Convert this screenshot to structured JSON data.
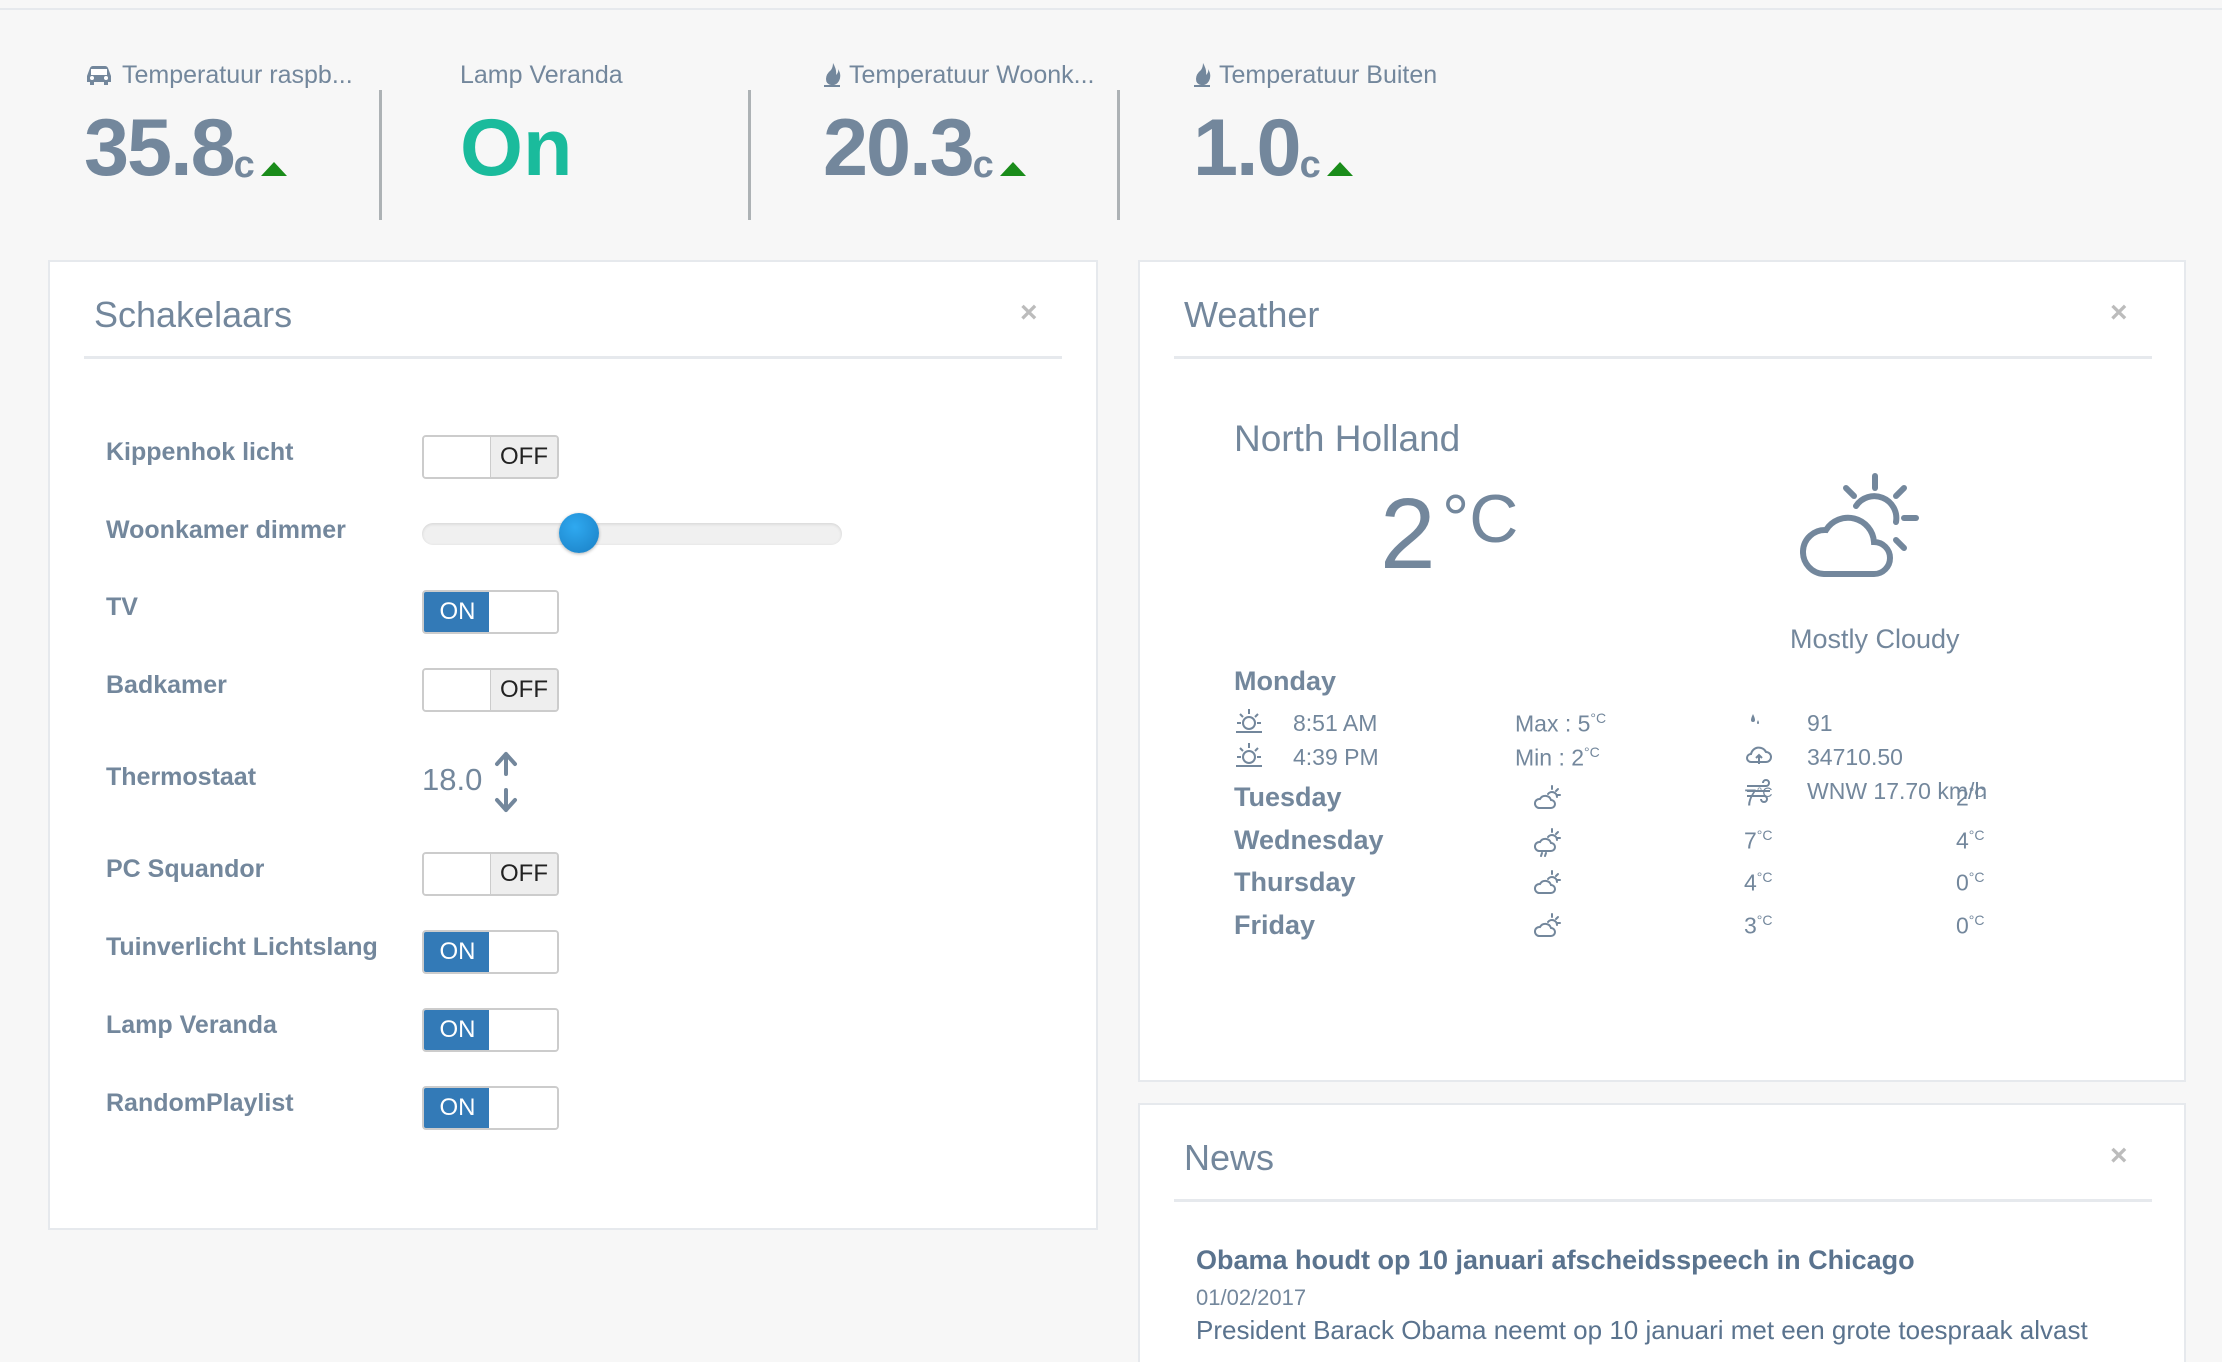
{
  "tiles": [
    {
      "icon": "car-icon",
      "label": "Temperatuur raspb...",
      "value": "35.8",
      "unit": "c",
      "trend": "up"
    },
    {
      "label": "Lamp Veranda",
      "value": "On"
    },
    {
      "icon": "fire-icon",
      "label": "Temperatuur Woonk...",
      "value": "20.3",
      "unit": "c",
      "trend": "up"
    },
    {
      "icon": "fire-icon",
      "label": "Temperatuur Buiten",
      "value": "1.0",
      "unit": "c",
      "trend": "up"
    }
  ],
  "switches_panel": {
    "title": "Schakelaars",
    "close": "×",
    "items": [
      {
        "label": "Kippenhok licht",
        "type": "toggle",
        "state": "OFF"
      },
      {
        "label": "Woonkamer dimmer",
        "type": "slider",
        "level": 0.36
      },
      {
        "label": "TV",
        "type": "toggle",
        "state": "ON"
      },
      {
        "label": "Badkamer",
        "type": "toggle",
        "state": "OFF"
      },
      {
        "label": "Thermostaat",
        "type": "thermostat",
        "value": "18.0"
      },
      {
        "label": "PC Squandor",
        "type": "toggle",
        "state": "OFF"
      },
      {
        "label": "Tuinverlicht Lichtslang",
        "type": "toggle",
        "state": "ON"
      },
      {
        "label": "Lamp Veranda",
        "type": "toggle",
        "state": "ON"
      },
      {
        "label": "RandomPlaylist",
        "type": "toggle",
        "state": "ON"
      }
    ],
    "on_label": "ON",
    "off_label": "OFF"
  },
  "weather_panel": {
    "title": "Weather",
    "close": "×",
    "city": "North Holland",
    "temp": "2",
    "temp_unit": "°C",
    "condition": "Mostly Cloudy",
    "today": {
      "day": "Monday",
      "sunrise": "8:51 AM",
      "sunset": "4:39 PM",
      "max_label": "Max : 5",
      "min_label": "Min : 2",
      "deg": "°C",
      "humidity": "91",
      "pressure": "34710.50",
      "wind": "WNW 17.70 km/h"
    },
    "forecast": [
      {
        "day": "Tuesday",
        "icon": "partly-cloudy-icon",
        "high": "7",
        "low": "2"
      },
      {
        "day": "Wednesday",
        "icon": "cloudy-rain-icon",
        "high": "7",
        "low": "4"
      },
      {
        "day": "Thursday",
        "icon": "partly-cloudy-icon",
        "high": "4",
        "low": "0"
      },
      {
        "day": "Friday",
        "icon": "partly-cloudy-icon",
        "high": "3",
        "low": "0"
      }
    ]
  },
  "news_panel": {
    "title": "News",
    "close": "×",
    "headline": "Obama houdt op 10 januari afscheidsspeech in Chicago",
    "date": "01/02/2017",
    "snippet": "President Barack Obama neemt op 10 januari met een grote toespraak alvast"
  },
  "colors": {
    "text": "#73879c",
    "accent_green": "#1abb9c",
    "toggle_on": "#337ab7",
    "slider": "#1a7fc4"
  }
}
